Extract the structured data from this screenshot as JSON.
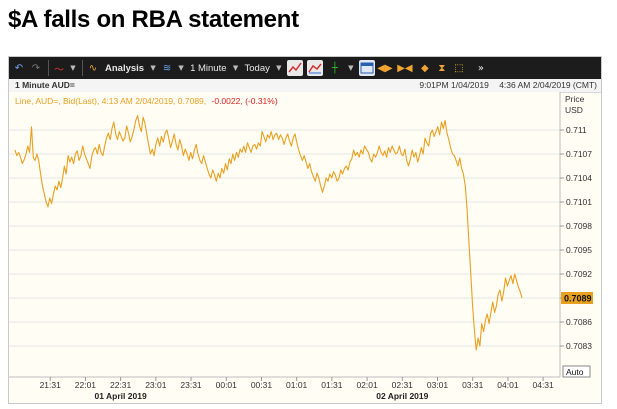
{
  "headline": "$A falls on RBA statement",
  "toolbar": {
    "analysis_label": "Analysis",
    "interval_label": "1 Minute",
    "range_label": "Today",
    "more_label": "»"
  },
  "infobar": {
    "instrument": "1 Minute AUD=",
    "range_start": "9:01PM 1/04/2019",
    "range_end": "4:36 AM 2/04/2019 (CMT)"
  },
  "legend": {
    "series_desc": "Line, AUD=, Bid(Last),  4:13 AM 2/04/2019, 0.7089,",
    "change": "-0.0022, (-0.31%)"
  },
  "axis": {
    "price_label": "Price",
    "unit_label": "USD",
    "auto_label": "Auto",
    "last_value_label": "0.7089"
  },
  "colors": {
    "series": "#e8a020",
    "change": "#e02020",
    "last_badge": "#e8a020",
    "grid": "#e6e6e6"
  },
  "chart_data": {
    "type": "line",
    "title": "$A falls on RBA statement",
    "xlabel": "",
    "ylabel": "Price USD",
    "ylim": [
      0.70805,
      0.71125
    ],
    "y_ticks": [
      "0.711",
      "0.7107",
      "0.7104",
      "0.7101",
      "0.7098",
      "0.7095",
      "0.7092",
      "0.7089",
      "0.7086",
      "0.7083"
    ],
    "y_tick_values": [
      0.711,
      0.7107,
      0.7104,
      0.7101,
      0.7098,
      0.7095,
      0.7092,
      0.7089,
      0.7086,
      0.7083
    ],
    "x_ticks": [
      "21:31",
      "22:01",
      "22:31",
      "23:01",
      "23:31",
      "00:01",
      "00:31",
      "01:01",
      "01:31",
      "02:01",
      "02:31",
      "03:01",
      "03:31",
      "04:01",
      "04:31"
    ],
    "date_labels": [
      {
        "label": "01 April 2019",
        "at": "22:31"
      },
      {
        "label": "02 April 2019",
        "at": "02:31"
      }
    ],
    "last_value": 0.7089,
    "series": [
      {
        "time_start": "21:01",
        "time_end": "04:13",
        "values": [
          0.71075,
          0.71068,
          0.71072,
          0.71066,
          0.71058,
          0.71063,
          0.7107,
          0.7108,
          0.71072,
          0.71104,
          0.71065,
          0.71062,
          0.7107,
          0.71061,
          0.71045,
          0.7103,
          0.7102,
          0.7101,
          0.71004,
          0.71015,
          0.71008,
          0.7102,
          0.7103,
          0.71025,
          0.71036,
          0.71028,
          0.7104,
          0.71055,
          0.71045,
          0.71068,
          0.7106,
          0.71066,
          0.71058,
          0.7107,
          0.71074,
          0.71062,
          0.71068,
          0.7108,
          0.7107,
          0.71064,
          0.71058,
          0.71052,
          0.71068,
          0.71075,
          0.71078,
          0.7107,
          0.71082,
          0.71072,
          0.71068,
          0.7108,
          0.7109,
          0.71096,
          0.71088,
          0.71102,
          0.7111,
          0.71095,
          0.71088,
          0.71098,
          0.71092,
          0.71086,
          0.7109,
          0.71105,
          0.71096,
          0.71085,
          0.71092,
          0.71101,
          0.71112,
          0.71118,
          0.71105,
          0.71098,
          0.71116,
          0.71108,
          0.71095,
          0.71082,
          0.7107,
          0.71076,
          0.71068,
          0.71082,
          0.7109,
          0.7108,
          0.71092,
          0.71085,
          0.71096,
          0.711,
          0.7109,
          0.71078,
          0.71086,
          0.71095,
          0.71082,
          0.71075,
          0.71088,
          0.7108,
          0.71068,
          0.71076,
          0.7107,
          0.71062,
          0.71072,
          0.71064,
          0.71075,
          0.71082,
          0.7107,
          0.71062,
          0.71058,
          0.71068,
          0.7106,
          0.71052,
          0.71045,
          0.7104,
          0.7105,
          0.71044,
          0.71036,
          0.71046,
          0.7104,
          0.71052,
          0.71046,
          0.71058,
          0.7105,
          0.71064,
          0.71058,
          0.7107,
          0.71062,
          0.71072,
          0.71066,
          0.71076,
          0.71072,
          0.7108,
          0.71072,
          0.71084,
          0.71078,
          0.71072,
          0.7108,
          0.71082,
          0.71076,
          0.71084,
          0.7108,
          0.71098,
          0.71092,
          0.71085,
          0.71094,
          0.7109,
          0.71098,
          0.71088,
          0.71094,
          0.71096,
          0.71088,
          0.71094,
          0.7109,
          0.71082,
          0.7109,
          0.71095,
          0.71086,
          0.7108,
          0.7109,
          0.71095,
          0.71084,
          0.71075,
          0.71068,
          0.71062,
          0.71068,
          0.7106,
          0.71052,
          0.71058,
          0.71048,
          0.71042,
          0.71036,
          0.71046,
          0.7104,
          0.7103,
          0.71022,
          0.7103,
          0.7104,
          0.71036,
          0.71045,
          0.7104,
          0.71048,
          0.71044,
          0.71036,
          0.7104,
          0.7105,
          0.71045,
          0.71052,
          0.71055,
          0.7105,
          0.7106,
          0.71064,
          0.71075,
          0.71068,
          0.71072,
          0.71066,
          0.71075,
          0.7107,
          0.7108,
          0.71076,
          0.71072,
          0.71064,
          0.7106,
          0.7107,
          0.71066,
          0.71072,
          0.7108,
          0.71072,
          0.71068,
          0.71074,
          0.71066,
          0.71078,
          0.71072,
          0.7108,
          0.71075,
          0.7107,
          0.71072,
          0.7108,
          0.7107,
          0.71068,
          0.71076,
          0.71062,
          0.71055,
          0.71064,
          0.71075,
          0.71066,
          0.71072,
          0.7106,
          0.71068,
          0.71078,
          0.7107,
          0.7109,
          0.71084,
          0.7108,
          0.71095,
          0.711,
          0.71092,
          0.71098,
          0.71104,
          0.71094,
          0.7111,
          0.71102,
          0.71112,
          0.71096,
          0.71088,
          0.71078,
          0.7107,
          0.71068,
          0.71062,
          0.71055,
          0.71065,
          0.71052,
          0.71045,
          0.7103,
          0.71,
          0.7096,
          0.7092,
          0.7088,
          0.7085,
          0.70825,
          0.7084,
          0.7083,
          0.70858,
          0.70848,
          0.70862,
          0.7087,
          0.70858,
          0.70872,
          0.70885,
          0.70872,
          0.7088,
          0.70895,
          0.709,
          0.70886,
          0.70898,
          0.70915,
          0.70905,
          0.70912,
          0.70918,
          0.70908,
          0.7092,
          0.70912,
          0.70904,
          0.70898,
          0.7089
        ]
      }
    ]
  }
}
